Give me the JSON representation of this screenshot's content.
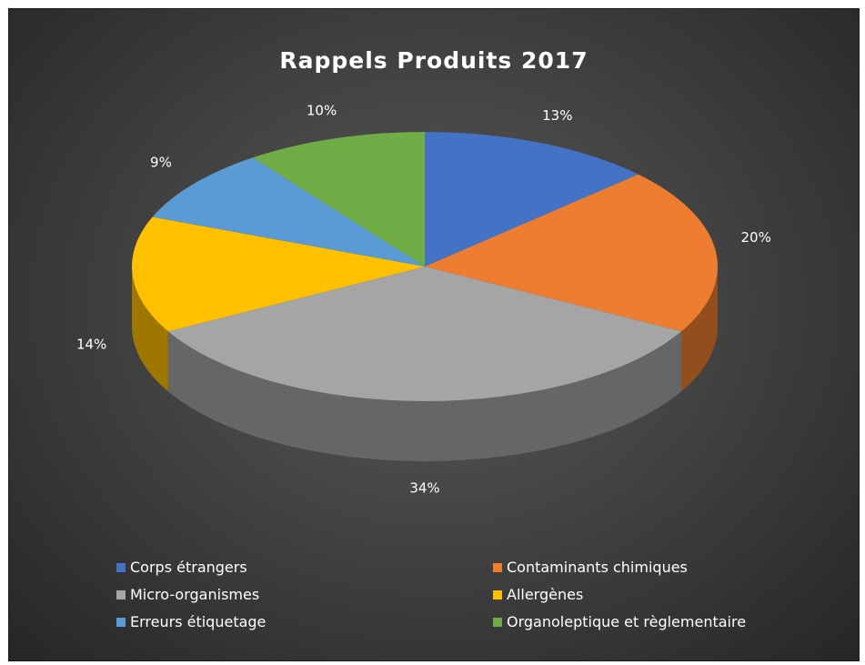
{
  "chart_data": {
    "type": "pie",
    "title": "Rappels Produits 2017",
    "slices": [
      {
        "label": "Corps étrangers",
        "value": 13,
        "display": "13%",
        "color": "#4472c4"
      },
      {
        "label": "Contaminants chimiques",
        "value": 20,
        "display": "20%",
        "color": "#ed7d31"
      },
      {
        "label": "Micro-organismes",
        "value": 34,
        "display": "34%",
        "color": "#a5a5a5"
      },
      {
        "label": "Allergènes",
        "value": 14,
        "display": "14%",
        "color": "#ffc000"
      },
      {
        "label": "Erreurs étiquetage",
        "value": 9,
        "display": "9%",
        "color": "#5b9bd5"
      },
      {
        "label": "Organoleptique et règlementaire",
        "value": 10,
        "display": "10%",
        "color": "#70ad47"
      }
    ],
    "style": "3d-pie",
    "legend_position": "bottom"
  }
}
